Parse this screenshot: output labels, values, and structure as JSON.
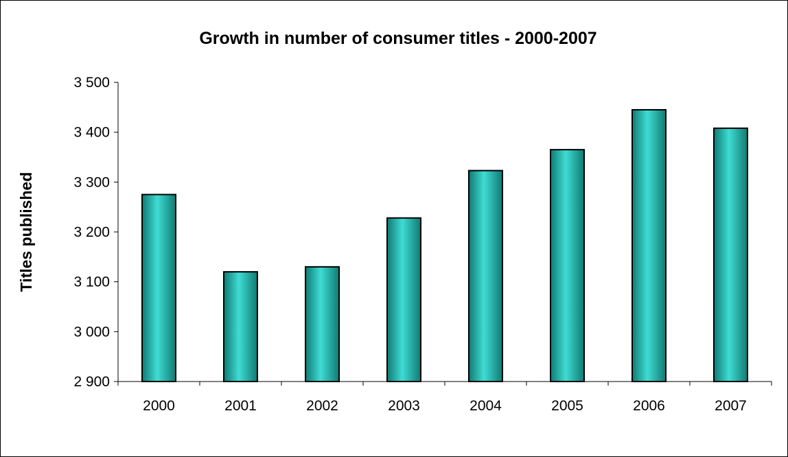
{
  "chart_data": {
    "type": "bar",
    "title": "Growth in number of consumer titles - 2000-2007",
    "xlabel": "",
    "ylabel": "Titles published",
    "categories": [
      "2000",
      "2001",
      "2002",
      "2003",
      "2004",
      "2005",
      "2006",
      "2007"
    ],
    "values": [
      3275,
      3120,
      3130,
      3228,
      3323,
      3365,
      3445,
      3408
    ],
    "ylim": [
      2900,
      3500
    ],
    "yticks": [
      2900,
      3000,
      3100,
      3200,
      3300,
      3400,
      3500
    ],
    "ytick_labels": [
      "2 900",
      "3 000",
      "3 100",
      "3 200",
      "3 300",
      "3 400",
      "3 500"
    ],
    "grid": false,
    "legend": "none",
    "bar_color": "#2ab8b0"
  }
}
